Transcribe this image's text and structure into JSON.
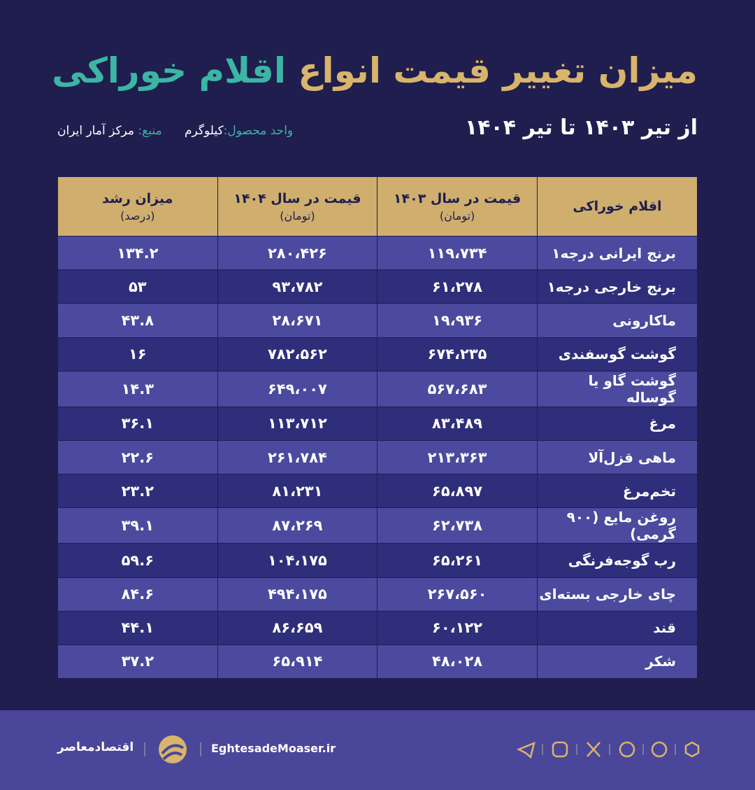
{
  "header": {
    "title_part1": "میزان تغییر قیمت انواع",
    "title_part2": "اقلام خوراکی",
    "period": "از تیر ۱۴۰۳ تا تیر ۱۴۰۴",
    "unit_label": "واحد محصول:",
    "unit_value": "کیلوگرم",
    "source_label": "منبع:",
    "source_value": "مرکز آمار ایران"
  },
  "table": {
    "columns": [
      {
        "title": "اقلام خوراکی"
      },
      {
        "title": "قیمت در سال ۱۴۰۳",
        "sub": "(تومان)"
      },
      {
        "title": "قیمت در سال ۱۴۰۴",
        "sub": "(تومان)"
      },
      {
        "title": "میزان رشد",
        "sub": "(درصد)"
      }
    ],
    "rows": [
      [
        "برنج ایرانی درجه۱",
        "۱۱۹،۷۳۴",
        "۲۸۰،۴۲۶",
        "۱۳۴.۲"
      ],
      [
        "برنج خارجی درجه۱",
        "۶۱،۲۷۸",
        "۹۳،۷۸۲",
        "۵۳"
      ],
      [
        "ماکارونی",
        "۱۹،۹۳۶",
        "۲۸،۶۷۱",
        "۴۳.۸"
      ],
      [
        "گوشت گوسفندی",
        "۶۷۴،۲۳۵",
        "۷۸۲،۵۶۲",
        "۱۶"
      ],
      [
        "گوشت گاو یا گوساله",
        "۵۶۷،۶۸۳",
        "۶۴۹،۰۰۷",
        "۱۴.۳"
      ],
      [
        "مرغ",
        "۸۳،۴۸۹",
        "۱۱۳،۷۱۲",
        "۳۶.۱"
      ],
      [
        "ماهی قزل‌آلا",
        "۲۱۳،۳۶۳",
        "۲۶۱،۷۸۴",
        "۲۲.۶"
      ],
      [
        "تخم‌مرغ",
        "۶۵،۸۹۷",
        "۸۱،۲۳۱",
        "۲۳.۲"
      ],
      [
        "روغن مایع (۹۰۰ گرمی)",
        "۶۲،۷۳۸",
        "۸۷،۲۶۹",
        "۳۹.۱"
      ],
      [
        "رب گوجه‌فرنگی",
        "۶۵،۲۶۱",
        "۱۰۴،۱۷۵",
        "۵۹.۶"
      ],
      [
        "چای خارجی بسته‌ای",
        "۲۶۷،۵۶۰",
        "۴۹۴،۱۷۵",
        "۸۴.۶"
      ],
      [
        "قند",
        "۶۰،۱۲۲",
        "۸۶،۶۵۹",
        "۴۴.۱"
      ],
      [
        "شکر",
        "۴۸،۰۲۸",
        "۶۵،۹۱۴",
        "۳۷.۲"
      ]
    ]
  },
  "footer": {
    "brand": "اقتصادمعاصر",
    "site": "EghtesadeMoaser.ir"
  }
}
